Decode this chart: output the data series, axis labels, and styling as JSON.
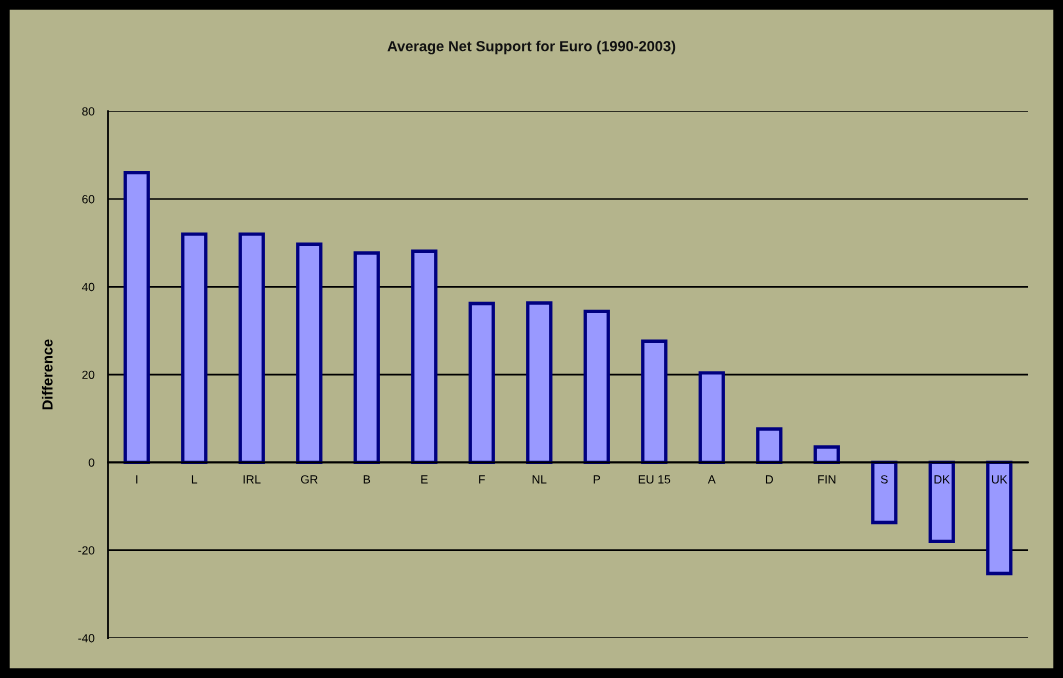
{
  "chart_data": {
    "type": "bar",
    "title": "Average Net Support for Euro (1990-2003)",
    "ylabel": "Difference",
    "categories": [
      "I",
      "L",
      "IRL",
      "GR",
      "B",
      "E",
      "F",
      "NL",
      "P",
      "EU 15",
      "A",
      "D",
      "FIN",
      "S",
      "DK",
      "UK"
    ],
    "values": [
      66,
      52,
      52,
      49.7,
      47.7,
      48.1,
      36.2,
      36.3,
      34.4,
      27.6,
      20.4,
      7.6,
      3.5,
      -13.7,
      -18,
      -25.3
    ],
    "color": "#9999ff",
    "ylim": [
      -40,
      80
    ],
    "yticks": [
      -40,
      -20,
      0,
      20,
      40,
      60,
      80
    ],
    "grid": "y"
  }
}
